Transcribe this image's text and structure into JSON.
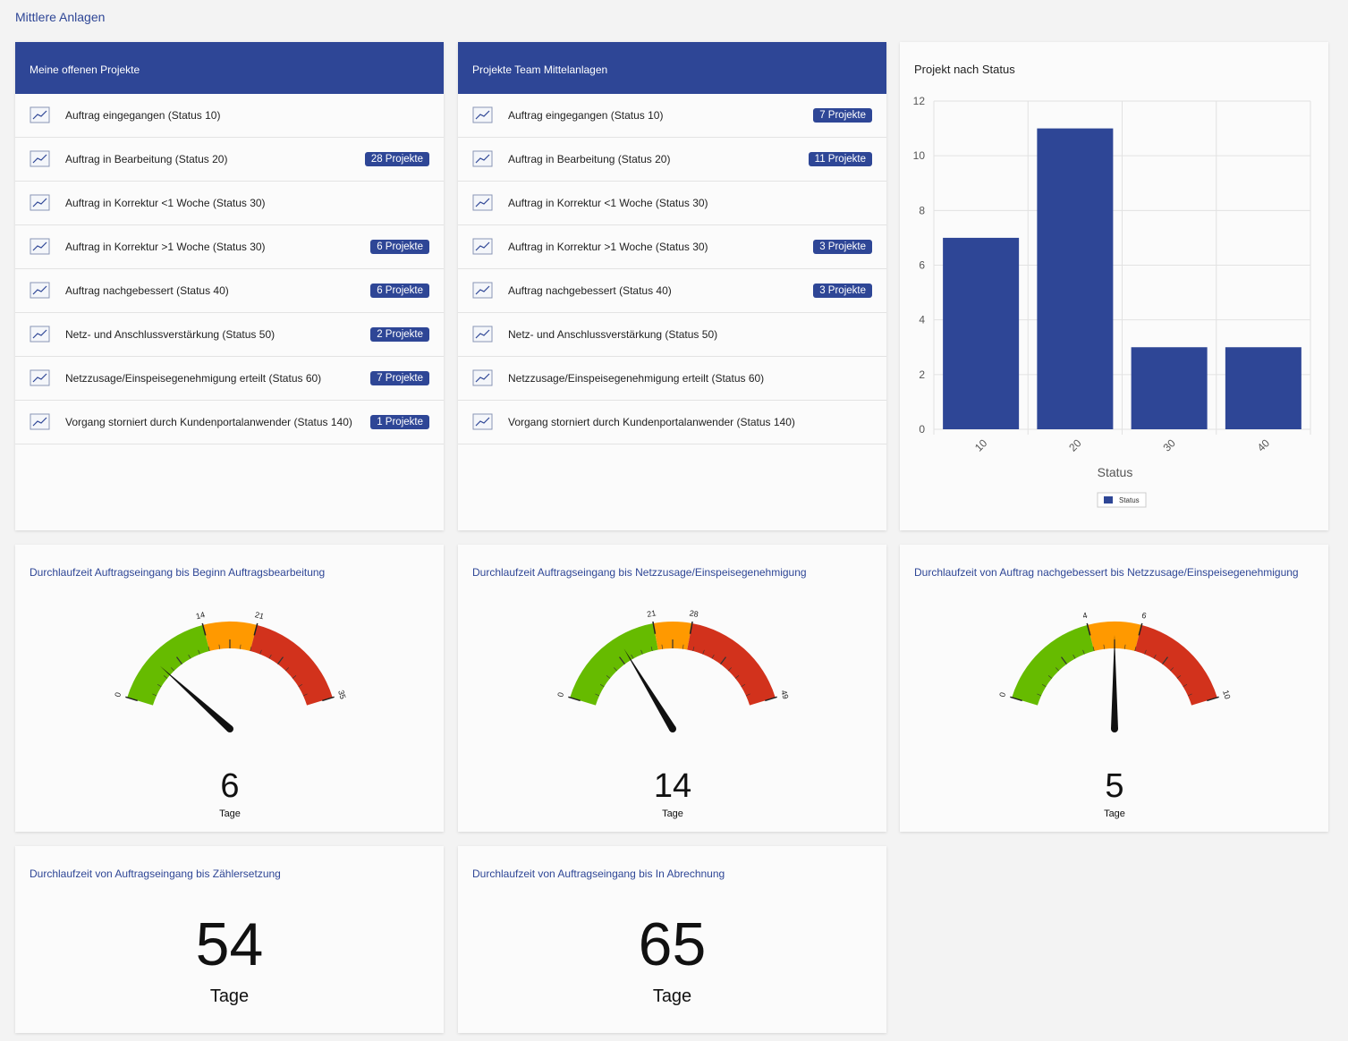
{
  "header": {
    "title": "Mittlere Anlagen"
  },
  "lists": [
    {
      "title": "Meine offenen Projekte",
      "items": [
        {
          "label": "Auftrag eingegangen (Status 10)"
        },
        {
          "label": "Auftrag in Bearbeitung (Status 20)",
          "badge": "28 Projekte"
        },
        {
          "label": "Auftrag in Korrektur <1 Woche (Status 30)"
        },
        {
          "label": "Auftrag in Korrektur >1 Woche (Status 30)",
          "badge": "6 Projekte"
        },
        {
          "label": "Auftrag nachgebessert (Status 40)",
          "badge": "6 Projekte"
        },
        {
          "label": "Netz- und Anschlussverstärkung (Status 50)",
          "badge": "2 Projekte"
        },
        {
          "label": "Netzzusage/Einspeisegenehmigung erteilt (Status 60)",
          "badge": "7 Projekte"
        },
        {
          "label": "Vorgang storniert durch Kundenportalanwender (Status 140)",
          "badge": "1 Projekte"
        }
      ]
    },
    {
      "title": "Projekte Team Mittelanlagen",
      "items": [
        {
          "label": "Auftrag eingegangen (Status 10)",
          "badge": "7 Projekte"
        },
        {
          "label": "Auftrag in Bearbeitung (Status 20)",
          "badge": "11 Projekte"
        },
        {
          "label": "Auftrag in Korrektur <1 Woche (Status 30)"
        },
        {
          "label": "Auftrag in Korrektur >1 Woche (Status 30)",
          "badge": "3 Projekte"
        },
        {
          "label": "Auftrag nachgebessert (Status 40)",
          "badge": "3 Projekte"
        },
        {
          "label": "Netz- und Anschlussverstärkung (Status 50)"
        },
        {
          "label": "Netzzusage/Einspeisegenehmigung erteilt (Status 60)"
        },
        {
          "label": "Vorgang storniert durch Kundenportalanwender (Status 140)"
        }
      ]
    }
  ],
  "chart_data": {
    "type": "bar",
    "title": "Projekt nach Status",
    "x_label": "Status",
    "categories": [
      "10",
      "20",
      "30",
      "40"
    ],
    "series": [
      {
        "name": "Status",
        "color": "#2e4696",
        "values": [
          7,
          11,
          3,
          3
        ]
      }
    ],
    "ylim": [
      0,
      12
    ],
    "yticks": [
      0,
      2,
      4,
      6,
      8,
      10,
      12
    ],
    "grid": true
  },
  "gauges": [
    {
      "title": "Durchlaufzeit Auftragseingang bis Beginn Auftragsbearbeitung",
      "value": 6,
      "unit": "Tage",
      "ticks": [
        0,
        14,
        21,
        35
      ],
      "colors": [
        "#66bb00",
        "#ff9900",
        "#d2321c"
      ]
    },
    {
      "title": "Durchlaufzeit Auftragseingang bis Netzzusage/Einspeisegenehmigung",
      "value": 14,
      "unit": "Tage",
      "ticks": [
        0,
        21,
        28,
        49
      ],
      "colors": [
        "#66bb00",
        "#ff9900",
        "#d2321c"
      ]
    },
    {
      "title": "Durchlaufzeit von Auftrag nachgebessert bis Netzzusage/Einspeisegenehmigung",
      "value": 5,
      "unit": "Tage",
      "ticks": [
        0,
        4,
        6,
        10
      ],
      "colors": [
        "#66bb00",
        "#ff9900",
        "#d2321c"
      ]
    }
  ],
  "kpis": [
    {
      "title": "Durchlaufzeit von Auftragseingang bis Zählersetzung",
      "value": 54,
      "unit": "Tage"
    },
    {
      "title": "Durchlaufzeit von Auftragseingang bis In Abrechnung",
      "value": 65,
      "unit": "Tage"
    }
  ]
}
